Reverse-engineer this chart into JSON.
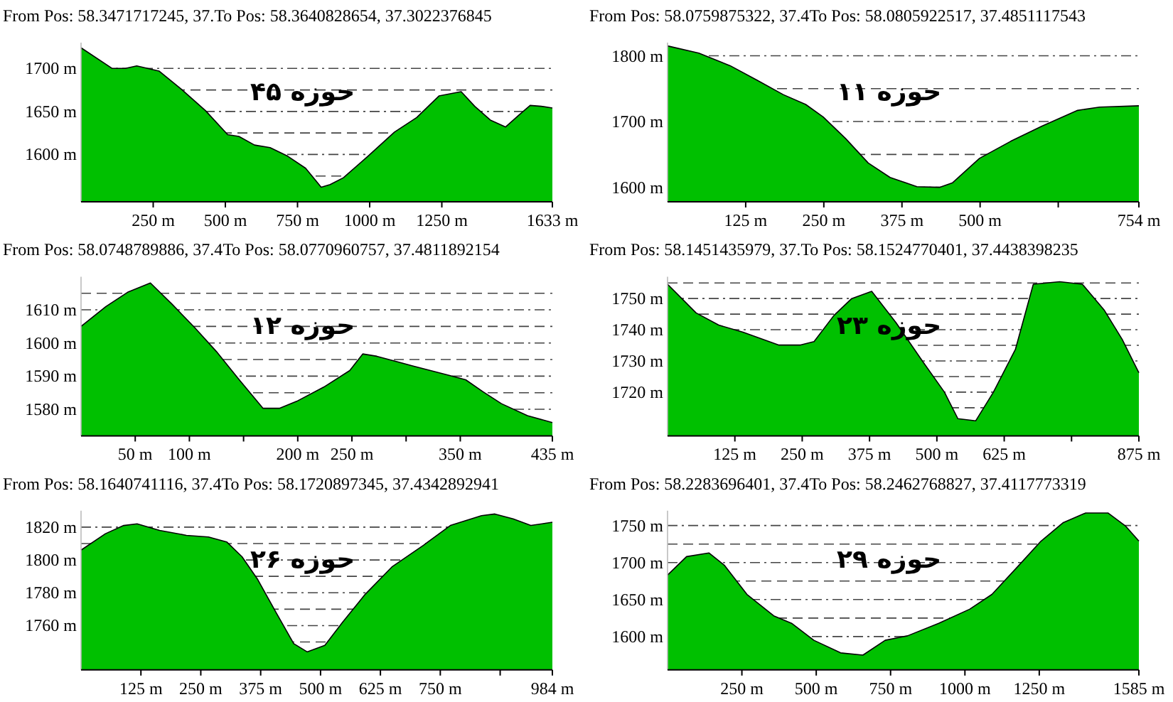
{
  "chart_data": [
    {
      "type": "area",
      "title": "From Pos: 58.3471717245, 37.",
      "subtitle": "To Pos: 58.3640828654, 37.3022376845",
      "color": "#00c000",
      "grid": "y",
      "annotations": [
        "حوزه ۴۵"
      ],
      "x": [
        0,
        108,
        154,
        193,
        270,
        347,
        431,
        508,
        547,
        601,
        655,
        716,
        778,
        832,
        863,
        909,
        994,
        1086,
        1163,
        1240,
        1317,
        1364,
        1418,
        1471,
        1518,
        1556,
        1595,
        1633
      ],
      "values": [
        1724,
        1700,
        1700,
        1703,
        1697,
        1676,
        1651,
        1623,
        1621,
        1611,
        1608,
        1598,
        1584,
        1562,
        1565,
        1573,
        1598,
        1626,
        1643,
        1668,
        1673,
        1656,
        1640,
        1632,
        1646,
        1657,
        1656,
        1654
      ],
      "xlim": [
        0,
        1633
      ],
      "ylim": [
        1545,
        1730
      ],
      "xticks": [
        {
          "value": 250,
          "label": "250 m"
        },
        {
          "value": 500,
          "label": "500 m"
        },
        {
          "value": 750,
          "label": "750 m"
        },
        {
          "value": 1000,
          "label": "1000 m"
        },
        {
          "value": 1250,
          "label": "1250 m"
        },
        {
          "value": 1633,
          "label": "1633 m"
        }
      ],
      "yticks": [
        {
          "value": 1575,
          "label": null
        },
        {
          "value": 1600,
          "label": "1600 m"
        },
        {
          "value": 1625,
          "label": null
        },
        {
          "value": 1650,
          "label": "1650 m"
        },
        {
          "value": 1675,
          "label": null
        },
        {
          "value": 1700,
          "label": "1700 m"
        }
      ]
    },
    {
      "type": "area",
      "title": "From Pos: 58.0759875322, 37.4",
      "subtitle": "To Pos: 58.0805922517, 37.4851117543",
      "color": "#00c000",
      "grid": "y",
      "annotations": [
        "حوزه ۱۱"
      ],
      "x": [
        0,
        50,
        100,
        143,
        185,
        221,
        249,
        285,
        321,
        356,
        399,
        435,
        456,
        499,
        549,
        599,
        656,
        691,
        754
      ],
      "values": [
        1815,
        1804,
        1785,
        1763,
        1741,
        1726,
        1707,
        1674,
        1637,
        1615,
        1601,
        1600,
        1607,
        1644,
        1670,
        1693,
        1717,
        1722,
        1724
      ],
      "xlim": [
        0,
        754
      ],
      "ylim": [
        1578,
        1820
      ],
      "xticks": [
        {
          "value": 125,
          "label": "125 m"
        },
        {
          "value": 250,
          "label": "250 m"
        },
        {
          "value": 375,
          "label": "375 m"
        },
        {
          "value": 500,
          "label": "500 m"
        },
        {
          "value": 625,
          "label": null
        },
        {
          "value": 754,
          "label": "754 m"
        }
      ],
      "yticks": [
        {
          "value": 1600,
          "label": "1600 m"
        },
        {
          "value": 1650,
          "label": null
        },
        {
          "value": 1700,
          "label": "1700 m"
        },
        {
          "value": 1750,
          "label": null
        },
        {
          "value": 1800,
          "label": "1800 m"
        }
      ]
    },
    {
      "type": "area",
      "title": "From Pos: 58.0748789886, 37.4",
      "subtitle": "To Pos: 58.0770960757, 37.4811892154",
      "color": "#00c000",
      "grid": "y",
      "annotations": [
        "حوزه ۱۲"
      ],
      "x": [
        0,
        23,
        43,
        64,
        84,
        105,
        125,
        146,
        168,
        183,
        199,
        224,
        248,
        260,
        273,
        306,
        339,
        355,
        371,
        388,
        412,
        435
      ],
      "values": [
        1605,
        1611,
        1615.3,
        1618.1,
        1611.7,
        1604.6,
        1597.4,
        1588.9,
        1580.3,
        1580.3,
        1582.4,
        1586.7,
        1591.7,
        1596.7,
        1596,
        1593.1,
        1590.3,
        1588.9,
        1585.3,
        1581.7,
        1578.1,
        1576
      ],
      "xlim": [
        0,
        435
      ],
      "ylim": [
        1572,
        1620
      ],
      "xticks": [
        {
          "value": 50,
          "label": "50 m"
        },
        {
          "value": 100,
          "label": "100 m"
        },
        {
          "value": 150,
          "label": null
        },
        {
          "value": 200,
          "label": "200 m"
        },
        {
          "value": 250,
          "label": "250 m"
        },
        {
          "value": 300,
          "label": null
        },
        {
          "value": 350,
          "label": "350 m"
        },
        {
          "value": 435,
          "label": "435 m"
        }
      ],
      "yticks": [
        {
          "value": 1580,
          "label": "1580 m"
        },
        {
          "value": 1585,
          "label": null
        },
        {
          "value": 1590,
          "label": "1590 m"
        },
        {
          "value": 1595,
          "label": null
        },
        {
          "value": 1600,
          "label": "1600 m"
        },
        {
          "value": 1605,
          "label": null
        },
        {
          "value": 1610,
          "label": "1610 m"
        },
        {
          "value": 1615,
          "label": null
        }
      ]
    },
    {
      "type": "area",
      "title": "From Pos: 58.1451435979, 37.",
      "subtitle": "To Pos: 58.1524770401, 37.4438398235",
      "color": "#00c000",
      "grid": "y",
      "annotations": [
        "حوزه ۲۳"
      ],
      "x": [
        0,
        53,
        95,
        140,
        206,
        247,
        272,
        309,
        342,
        379,
        424,
        473,
        514,
        539,
        572,
        605,
        646,
        679,
        728,
        770,
        811,
        844,
        875
      ],
      "values": [
        1754.6,
        1745.4,
        1741.5,
        1739.2,
        1735.1,
        1735.1,
        1736.2,
        1744.6,
        1750,
        1752.3,
        1742.3,
        1730,
        1720,
        1711.5,
        1710.8,
        1720,
        1733.8,
        1754.6,
        1755.4,
        1754.6,
        1746.2,
        1736.9,
        1726.2
      ],
      "xlim": [
        0,
        875
      ],
      "ylim": [
        1706,
        1757
      ],
      "xticks": [
        {
          "value": 125,
          "label": "125 m"
        },
        {
          "value": 250,
          "label": "250 m"
        },
        {
          "value": 375,
          "label": "375 m"
        },
        {
          "value": 500,
          "label": "500 m"
        },
        {
          "value": 625,
          "label": "625 m"
        },
        {
          "value": 750,
          "label": null
        },
        {
          "value": 875,
          "label": "875 m"
        }
      ],
      "yticks": [
        {
          "value": 1715,
          "label": null
        },
        {
          "value": 1720,
          "label": "1720 m"
        },
        {
          "value": 1725,
          "label": null
        },
        {
          "value": 1730,
          "label": "1730 m"
        },
        {
          "value": 1735,
          "label": null
        },
        {
          "value": 1740,
          "label": "1740 m"
        },
        {
          "value": 1745,
          "label": null
        },
        {
          "value": 1750,
          "label": "1750 m"
        },
        {
          "value": 1755,
          "label": null
        }
      ]
    },
    {
      "type": "area",
      "title": "From Pos: 58.1640741116, 37.4",
      "subtitle": "To Pos: 58.1720897345, 37.4342892941",
      "color": "#00c000",
      "grid": "y",
      "annotations": [
        "حوزه ۲۶"
      ],
      "x": [
        0,
        51,
        89,
        117,
        164,
        220,
        266,
        304,
        336,
        369,
        407,
        444,
        472,
        509,
        546,
        593,
        650,
        715,
        771,
        836,
        864,
        902,
        939,
        984
      ],
      "values": [
        1806,
        1816,
        1821,
        1822,
        1818,
        1815,
        1814,
        1811,
        1802,
        1788,
        1768,
        1749,
        1744,
        1748,
        1762,
        1779,
        1796,
        1809,
        1821,
        1827,
        1828,
        1825,
        1821,
        1823
      ],
      "xlim": [
        0,
        984
      ],
      "ylim": [
        1733,
        1830
      ],
      "xticks": [
        {
          "value": 125,
          "label": "125 m"
        },
        {
          "value": 250,
          "label": "250 m"
        },
        {
          "value": 375,
          "label": "375 m"
        },
        {
          "value": 500,
          "label": "500 m"
        },
        {
          "value": 625,
          "label": "625 m"
        },
        {
          "value": 750,
          "label": "750 m"
        },
        {
          "value": 875,
          "label": null
        },
        {
          "value": 984,
          "label": "984 m"
        }
      ],
      "yticks": [
        {
          "value": 1750,
          "label": null
        },
        {
          "value": 1760,
          "label": "1760 m"
        },
        {
          "value": 1770,
          "label": null
        },
        {
          "value": 1780,
          "label": "1780 m"
        },
        {
          "value": 1790,
          "label": null
        },
        {
          "value": 1800,
          "label": "1800 m"
        },
        {
          "value": 1810,
          "label": null
        },
        {
          "value": 1820,
          "label": "1820 m"
        }
      ]
    },
    {
      "type": "area",
      "title": "From Pos: 58.2283696401, 37.4",
      "subtitle": "To Pos: 58.2462768827, 37.4117773319",
      "color": "#00c000",
      "grid": "y",
      "annotations": [
        "حوزه ۲۹"
      ],
      "x": [
        0,
        64,
        139,
        192,
        267,
        357,
        417,
        492,
        582,
        657,
        732,
        807,
        912,
        1016,
        1091,
        1181,
        1256,
        1331,
        1406,
        1481,
        1541,
        1585
      ],
      "values": [
        1683,
        1708,
        1713,
        1696,
        1657,
        1628,
        1618,
        1595,
        1578,
        1575,
        1595,
        1601,
        1618,
        1637,
        1657,
        1696,
        1729,
        1754,
        1767,
        1767,
        1749,
        1729
      ],
      "xlim": [
        0,
        1585
      ],
      "ylim": [
        1555,
        1770
      ],
      "xticks": [
        {
          "value": 250,
          "label": "250 m"
        },
        {
          "value": 500,
          "label": "500 m"
        },
        {
          "value": 750,
          "label": "750 m"
        },
        {
          "value": 1000,
          "label": "1000 m"
        },
        {
          "value": 1250,
          "label": "1250 m"
        },
        {
          "value": 1585,
          "label": "1585 m"
        }
      ],
      "yticks": [
        {
          "value": 1575,
          "label": null
        },
        {
          "value": 1600,
          "label": "1600 m"
        },
        {
          "value": 1625,
          "label": null
        },
        {
          "value": 1650,
          "label": "1650 m"
        },
        {
          "value": 1675,
          "label": null
        },
        {
          "value": 1700,
          "label": "1700 m"
        },
        {
          "value": 1725,
          "label": null
        },
        {
          "value": 1750,
          "label": "1750 m"
        }
      ]
    }
  ]
}
